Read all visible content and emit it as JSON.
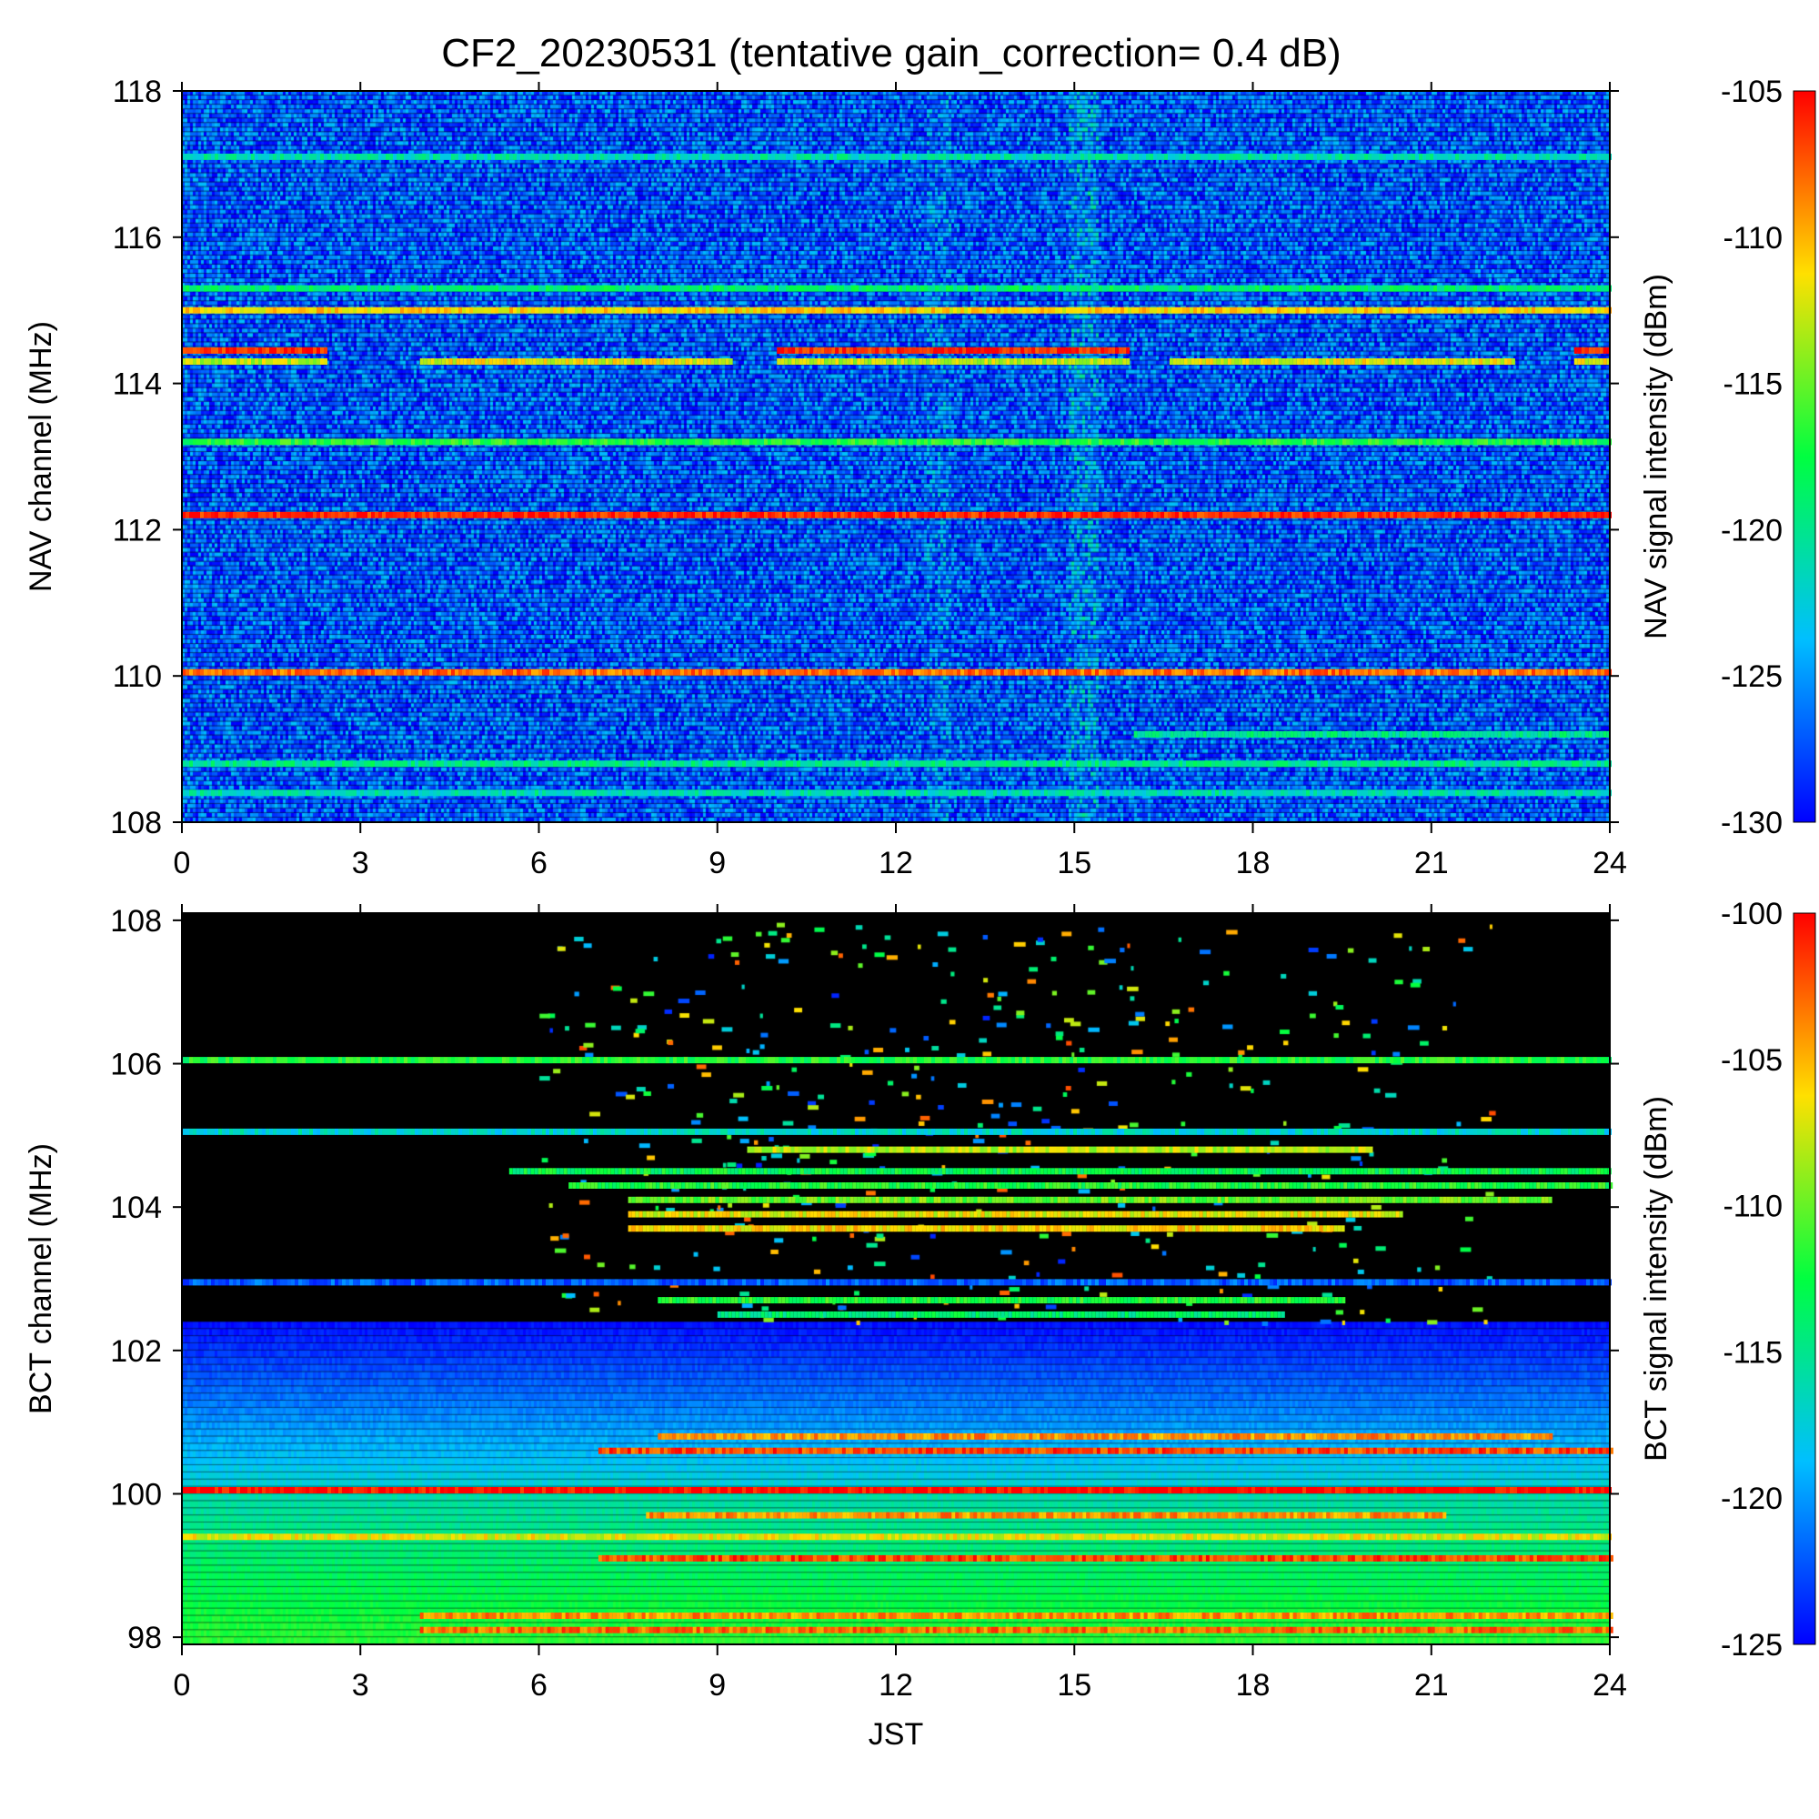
{
  "title": "CF2_20230531 (tentative gain_correction=  0.4 dB)",
  "chart_data": [
    {
      "type": "heatmap",
      "panel": "NAV",
      "xlabel": "",
      "ylabel": "NAV channel (MHz)",
      "colorbar_label": "NAV signal intensity (dBm)",
      "xlim": [
        0,
        24
      ],
      "ylim": [
        108,
        118
      ],
      "x_ticks": [
        "0",
        "3",
        "6",
        "9",
        "12",
        "15",
        "18",
        "21",
        "24"
      ],
      "y_ticks": [
        "108",
        "110",
        "112",
        "114",
        "116",
        "118"
      ],
      "colorbar_range": [
        -130,
        -105
      ],
      "colorbar_ticks": [
        "-105",
        "-110",
        "-115",
        "-120",
        "-125",
        "-130"
      ],
      "background_level": -127,
      "noisy_time_bands": [
        {
          "start": 12.5,
          "end": 12.9,
          "boost": 2
        },
        {
          "start": 14.9,
          "end": 15.4,
          "boost": 4
        }
      ],
      "channel_lines": [
        {
          "freq": 114.45,
          "segments": [
            [
              0,
              2.4,
              -106
            ],
            [
              10.0,
              15.9,
              -106
            ],
            [
              23.4,
              24,
              -106
            ]
          ]
        },
        {
          "freq": 114.3,
          "segments": [
            [
              0,
              2.4,
              -113
            ],
            [
              4.0,
              9.2,
              -112
            ],
            [
              10.0,
              15.9,
              -113
            ],
            [
              16.6,
              22.4,
              -112
            ],
            [
              23.4,
              24,
              -112
            ]
          ]
        },
        {
          "freq": 115.0,
          "segments": [
            [
              0,
              24,
              -111
            ]
          ]
        },
        {
          "freq": 115.3,
          "segments": [
            [
              0,
              24,
              -119
            ]
          ]
        },
        {
          "freq": 117.1,
          "segments": [
            [
              0,
              24,
              -121
            ]
          ]
        },
        {
          "freq": 113.2,
          "segments": [
            [
              0,
              24,
              -117
            ]
          ]
        },
        {
          "freq": 112.2,
          "segments": [
            [
              0,
              24,
              -106
            ]
          ]
        },
        {
          "freq": 110.05,
          "segments": [
            [
              0,
              24,
              -108
            ]
          ]
        },
        {
          "freq": 108.8,
          "segments": [
            [
              0,
              24,
              -120
            ]
          ]
        },
        {
          "freq": 108.4,
          "segments": [
            [
              0,
              24,
              -121
            ]
          ]
        },
        {
          "freq": 109.2,
          "segments": [
            [
              16.0,
              24,
              -120
            ]
          ]
        }
      ]
    },
    {
      "type": "heatmap",
      "panel": "BCT",
      "xlabel": "JST",
      "ylabel": "BCT channel (MHz)",
      "colorbar_label": "BCT signal intensity (dBm)",
      "xlim": [
        0,
        24
      ],
      "ylim": [
        97.9,
        108.1
      ],
      "x_ticks": [
        "0",
        "3",
        "6",
        "9",
        "12",
        "15",
        "18",
        "21",
        "24"
      ],
      "y_ticks": [
        "98",
        "100",
        "102",
        "104",
        "106",
        "108"
      ],
      "colorbar_range": [
        -125,
        -100
      ],
      "colorbar_ticks": [
        "-100",
        "-105",
        "-110",
        "-115",
        "-120",
        "-125"
      ],
      "channel_lines": [
        {
          "freq": 100.05,
          "segments": [
            [
              0,
              24,
              -100
            ]
          ]
        },
        {
          "freq": 105.05,
          "segments": [
            [
              0,
              24,
              -117
            ]
          ]
        },
        {
          "freq": 102.95,
          "segments": [
            [
              0,
              24,
              -122
            ]
          ]
        },
        {
          "freq": 106.05,
          "segments": [
            [
              0,
              24,
              -112
            ]
          ]
        },
        {
          "freq": 104.5,
          "segments": [
            [
              5.5,
              24,
              -113
            ]
          ]
        },
        {
          "freq": 104.3,
          "segments": [
            [
              6.5,
              24,
              -112
            ]
          ]
        },
        {
          "freq": 104.1,
          "segments": [
            [
              7.5,
              23,
              -110
            ]
          ]
        },
        {
          "freq": 103.9,
          "segments": [
            [
              7.5,
              20.5,
              -107
            ]
          ]
        },
        {
          "freq": 103.7,
          "segments": [
            [
              7.5,
              19.5,
              -106
            ]
          ]
        },
        {
          "freq": 104.8,
          "segments": [
            [
              9.5,
              20,
              -108
            ]
          ]
        },
        {
          "freq": 102.7,
          "segments": [
            [
              8,
              19.5,
              -112
            ]
          ]
        },
        {
          "freq": 102.5,
          "segments": [
            [
              9,
              18.5,
              -114
            ]
          ]
        },
        {
          "freq": 100.6,
          "segments": [
            [
              7,
              24,
              -102
            ]
          ]
        },
        {
          "freq": 100.8,
          "segments": [
            [
              8,
              23,
              -104
            ]
          ]
        },
        {
          "freq": 99.7,
          "segments": [
            [
              7.8,
              21.2,
              -104
            ]
          ]
        },
        {
          "freq": 99.4,
          "segments": [
            [
              0,
              24,
              -107
            ]
          ]
        },
        {
          "freq": 99.1,
          "segments": [
            [
              7,
              24,
              -102
            ]
          ]
        },
        {
          "freq": 98.3,
          "segments": [
            [
              4,
              24,
              -104
            ]
          ]
        },
        {
          "freq": 98.1,
          "segments": [
            [
              4,
              24,
              -103
            ]
          ]
        }
      ]
    }
  ]
}
